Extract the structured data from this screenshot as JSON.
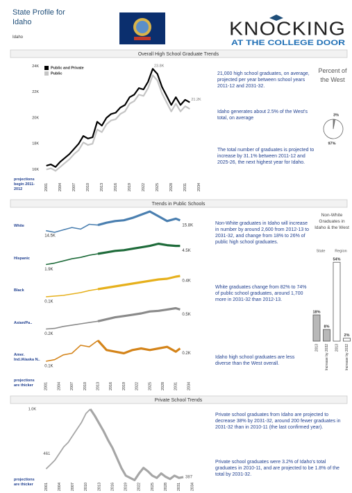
{
  "header": {
    "title": "State Profile for Idaho",
    "state": "Idaho",
    "logo_top": "KNOCKING",
    "logo_bottom": "AT THE COLLEGE DOOR"
  },
  "sections": [
    "Overall High School Graduate Trends",
    "Trends in Public Schools",
    "Private School Trends"
  ],
  "notes": {
    "overall": [
      "21,000 high school graduates, on average, projected per year between school years 2011-12 and 2031-32.",
      "Idaho generates about 2.5% of the West's total, on average",
      "The total number of graduates is projected to increase by 31.1% between 2011-12 and 2025-26, the next highest year for Idaho."
    ],
    "public": [
      "Non-White graduates in Idaho will increase in number by around 2,600 from 2012-13 to 2031-32, and change from 18% to 26% of public high school graduates.",
      "White graduates change from 82% to 74% of public school graduates, around 1,700 more in 2031-32 than 2012-13.",
      "Idaho high school graduates are less diverse than the West overall."
    ],
    "private": [
      "Private school graduates from Idaho are projected to decrease 38% by 2031-32, around 200 fewer graduates in 2031-32 than in 2010-11 (the last confirmed year).",
      "Private school graduates were 3.2% of Idaho's total graduates in 2010-11, and are projected to be 1.8% of the total by 2031-32."
    ]
  },
  "chart_data": [
    {
      "type": "line",
      "annotation": "projections begin 2011-2012",
      "x": [
        2001,
        2002,
        2003,
        2004,
        2005,
        2006,
        2007,
        2008,
        2009,
        2010,
        2011,
        2012,
        2013,
        2014,
        2015,
        2016,
        2017,
        2018,
        2019,
        2020,
        2021,
        2022,
        2023,
        2024,
        2025,
        2026,
        2027,
        2028,
        2029,
        2030,
        2031,
        2032
      ],
      "series": [
        {
          "name": "Public and Private",
          "color": "#000000",
          "values": [
            16300,
            16400,
            16200,
            16600,
            16900,
            17200,
            17600,
            18000,
            18600,
            18400,
            18500,
            19700,
            19400,
            20000,
            20300,
            20400,
            20800,
            21000,
            21600,
            21800,
            22300,
            22200,
            22800,
            23800,
            23400,
            22400,
            21700,
            21000,
            21600,
            21000,
            21400,
            21200
          ],
          "value_labels": [
            null,
            null,
            null,
            null,
            null,
            null,
            null,
            null,
            null,
            null,
            null,
            null,
            null,
            null,
            null,
            null,
            null,
            null,
            null,
            null,
            null,
            null,
            null,
            "23.8K",
            null,
            null,
            null,
            null,
            null,
            null,
            null,
            "21.2K"
          ]
        },
        {
          "name": "Public",
          "color": "#c4c4c4",
          "values": [
            16000,
            16100,
            15900,
            16200,
            16500,
            16800,
            17200,
            17500,
            18100,
            17900,
            18000,
            19100,
            18900,
            19500,
            19800,
            19900,
            20300,
            20500,
            21100,
            21300,
            21800,
            21700,
            22300,
            23300,
            22900,
            21900,
            21200,
            20500,
            21100,
            20500,
            20900,
            20700
          ]
        }
      ],
      "xlim": [
        2000,
        2034.5
      ],
      "xticks": [
        2001,
        2004,
        2007,
        2010,
        2013,
        2016,
        2019,
        2022,
        2025,
        2028,
        2031,
        2034
      ],
      "ylim": [
        15600,
        24400
      ],
      "yticks": [
        {
          "value": 16000,
          "label": "16K"
        },
        {
          "value": 18000,
          "label": "18K"
        },
        {
          "value": 20000,
          "label": "20K"
        },
        {
          "value": 22000,
          "label": "22K"
        },
        {
          "value": 24000,
          "label": "24K"
        }
      ],
      "legend": "top-left"
    },
    {
      "type": "pie",
      "title": "Percent of the West",
      "values": [
        3,
        97
      ],
      "value_labels": [
        "3%",
        "97%"
      ],
      "colors": [
        "#8c8c8c",
        "#ffffff"
      ]
    },
    {
      "type": "small-multiples",
      "annotation": "projections are thicker",
      "projections_from": 2013,
      "x": [
        2001,
        2003,
        2005,
        2007,
        2009,
        2011,
        2013,
        2015,
        2017,
        2019,
        2021,
        2023,
        2025,
        2027,
        2029,
        2031,
        2032
      ],
      "xlim": [
        2000,
        2034.5
      ],
      "xticks": [
        2001,
        2004,
        2007,
        2010,
        2013,
        2016,
        2019,
        2022,
        2025,
        2028,
        2031,
        2034
      ],
      "series": [
        {
          "name": "White",
          "color": "#4a7fb0",
          "values": [
            14500,
            14300,
            14600,
            14900,
            14700,
            15300,
            15200,
            15500,
            15700,
            15800,
            16100,
            16500,
            16900,
            16300,
            15700,
            16000,
            15800
          ],
          "value_labels": [
            "14.5K",
            null,
            null,
            null,
            null,
            null,
            null,
            null,
            null,
            null,
            null,
            null,
            null,
            null,
            null,
            null,
            "15.8K"
          ]
        },
        {
          "name": "Hispanic",
          "color": "#1e6b3a",
          "values": [
            1900,
            2100,
            2400,
            2700,
            2900,
            3200,
            3400,
            3600,
            3800,
            3900,
            4100,
            4300,
            4500,
            4800,
            4600,
            4500,
            4500
          ],
          "value_labels": [
            "1.9K",
            null,
            null,
            null,
            null,
            null,
            null,
            null,
            null,
            null,
            null,
            null,
            null,
            null,
            null,
            null,
            "4.5K"
          ]
        },
        {
          "name": "Black",
          "color": "#e6b01c",
          "values": [
            100,
            110,
            120,
            140,
            160,
            190,
            210,
            230,
            250,
            270,
            290,
            310,
            330,
            350,
            360,
            390,
            400
          ],
          "value_labels": [
            "0.1K",
            null,
            null,
            null,
            null,
            null,
            null,
            null,
            null,
            null,
            null,
            null,
            null,
            null,
            null,
            null,
            "0.4K"
          ]
        },
        {
          "name": "Asian/Pa..",
          "color": "#8a8a8a",
          "values": [
            200,
            210,
            240,
            260,
            280,
            300,
            320,
            350,
            380,
            400,
            420,
            440,
            470,
            480,
            500,
            520,
            500
          ],
          "value_labels": [
            "0.2K",
            null,
            null,
            null,
            null,
            null,
            null,
            null,
            null,
            null,
            null,
            null,
            null,
            null,
            null,
            null,
            "0.5K"
          ]
        },
        {
          "name": "Amer. Ind./Alaska N..",
          "color": "#d4841a",
          "values": [
            120,
            130,
            160,
            170,
            220,
            210,
            250,
            190,
            180,
            170,
            190,
            200,
            190,
            200,
            210,
            180,
            200
          ],
          "value_labels": [
            "0.1K",
            null,
            null,
            null,
            null,
            null,
            null,
            null,
            null,
            null,
            null,
            null,
            null,
            null,
            null,
            null,
            "0.2K"
          ]
        }
      ]
    },
    {
      "type": "bar",
      "title": "Non-White Graduates in Idaho & the West",
      "groups": [
        "State",
        "Region"
      ],
      "categories": [
        "2013",
        "Increase by 2032",
        "2013",
        "Increase by 2032"
      ],
      "values": [
        18,
        8,
        54,
        2
      ],
      "value_labels": [
        "18%",
        "8%",
        "54%",
        "2%"
      ],
      "colors": [
        "#b8b8b8",
        "#b8b8b8",
        "#ffffff",
        "#ffffff"
      ],
      "ylim": [
        0,
        56
      ]
    },
    {
      "type": "line",
      "annotation": "projections are thicker",
      "projections_from": 2011,
      "x": [
        2001,
        2002,
        2003,
        2004,
        2005,
        2006,
        2007,
        2008,
        2009,
        2010,
        2011,
        2012,
        2013,
        2014,
        2015,
        2016,
        2017,
        2018,
        2019,
        2020,
        2021,
        2022,
        2023,
        2024,
        2025,
        2026,
        2027,
        2028,
        2029,
        2030,
        2031,
        2032
      ],
      "series": [
        {
          "name": "Private",
          "color": "#a6a6a6",
          "values": [
            461,
            500,
            540,
            600,
            660,
            700,
            760,
            820,
            880,
            960,
            1000,
            940,
            870,
            800,
            720,
            650,
            560,
            470,
            400,
            380,
            360,
            420,
            470,
            440,
            400,
            380,
            420,
            390,
            370,
            400,
            380,
            387
          ]
        }
      ],
      "xlim": [
        2000,
        2034.5
      ],
      "xticks": [
        2001,
        2004,
        2007,
        2010,
        2013,
        2016,
        2019,
        2022,
        2025,
        2028,
        2031,
        2034
      ],
      "ylim": [
        300,
        1050
      ],
      "yticks": [
        {
          "value": 1000,
          "label": "1.0K"
        }
      ]
    }
  ]
}
